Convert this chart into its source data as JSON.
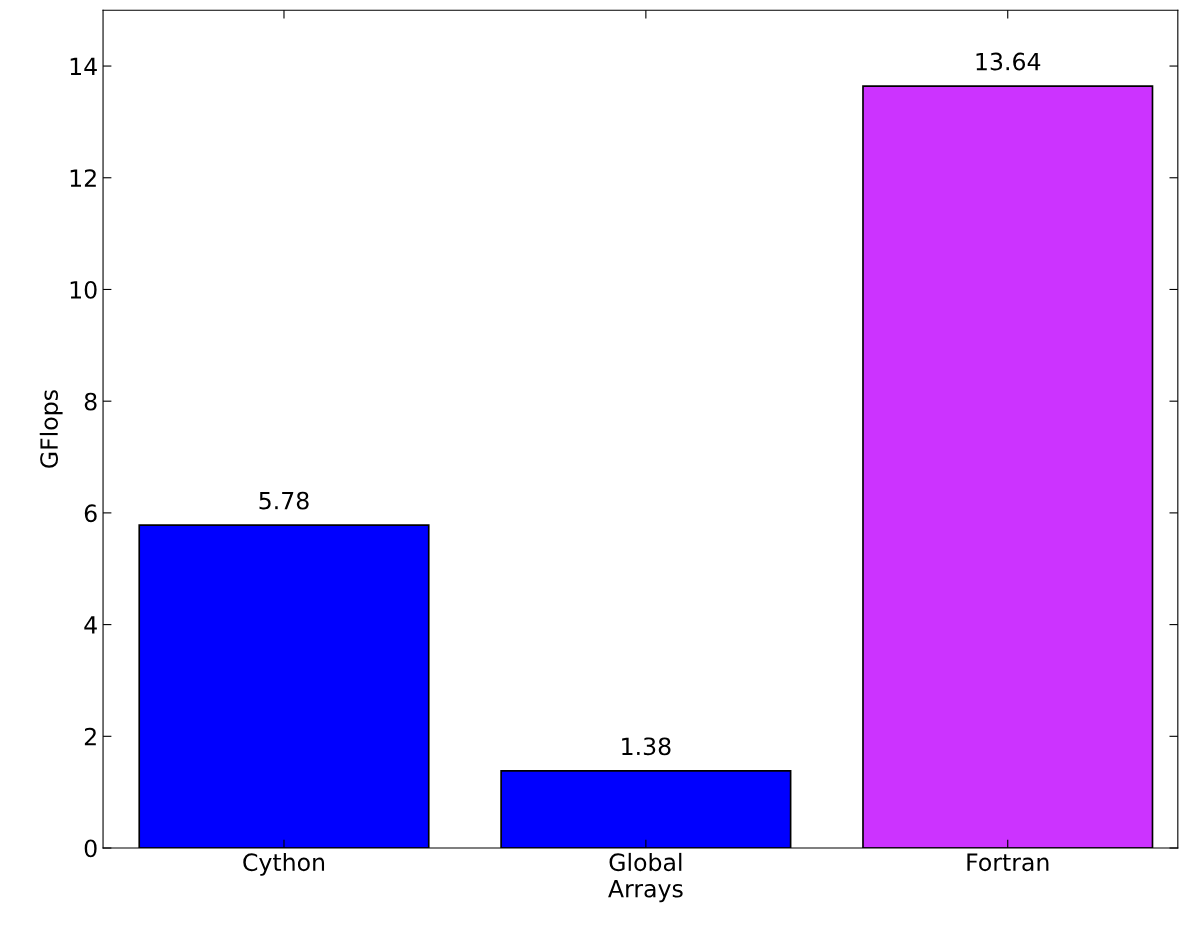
{
  "chart_data": {
    "type": "bar",
    "ylabel": "GFlops",
    "categories": [
      "Cython",
      "Global\nArrays",
      "Fortran"
    ],
    "values": [
      5.78,
      1.38,
      13.64
    ],
    "colors": [
      "#0000ff",
      "#0000ff",
      "#cc33ff"
    ],
    "ylim": [
      0,
      15
    ],
    "yticks": [
      0,
      2,
      4,
      6,
      8,
      10,
      12,
      14
    ],
    "data_labels": true,
    "grid": false,
    "legend": false
  }
}
